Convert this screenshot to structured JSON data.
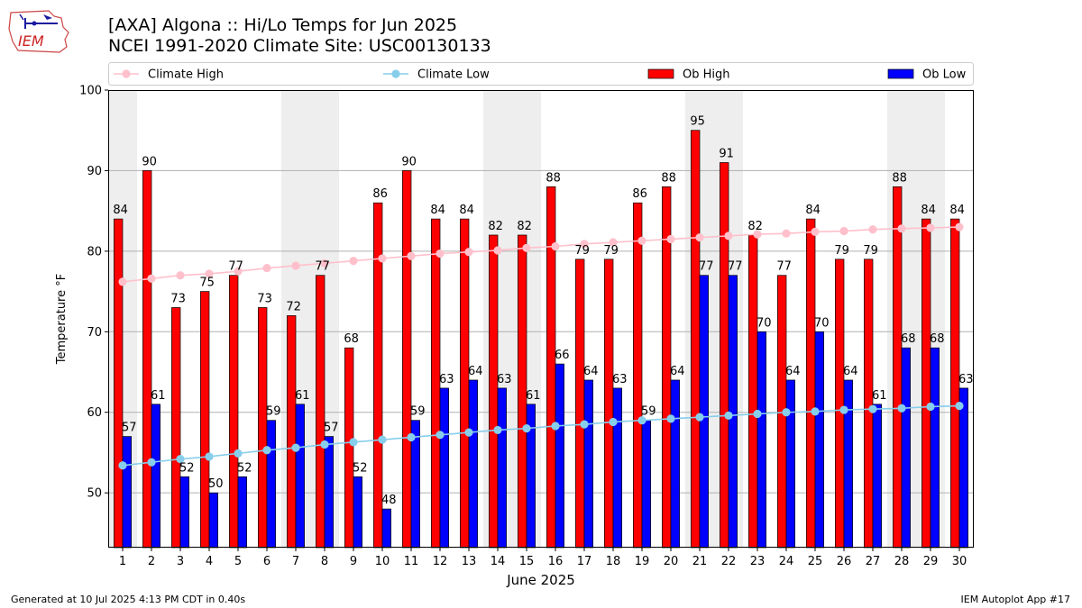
{
  "header": {
    "title_line1": "[AXA] Algona :: Hi/Lo Temps for Jun 2025",
    "title_line2": "NCEI 1991-2020 Climate Site: USC00130133"
  },
  "logo": {
    "text": "IEM"
  },
  "footer": {
    "left": "Generated at 10 Jul 2025 4:13 PM CDT in 0.40s",
    "right": "IEM Autoplot App #17"
  },
  "colors": {
    "ob_high": "#ff0000",
    "ob_low": "#0000ff",
    "climate_high": "#ffc0cb",
    "climate_low": "#87ceeb",
    "weekend_shade": "#eeeeee",
    "grid": "#b0b0b0"
  },
  "chart_data": {
    "type": "bar",
    "xlabel": "June 2025",
    "ylabel": "Temperature °F",
    "ylim": [
      43.2,
      100
    ],
    "yticks": [
      50,
      60,
      70,
      80,
      90,
      100
    ],
    "grid": "horizontal",
    "legend_position": "top",
    "categories": [
      "1",
      "2",
      "3",
      "4",
      "5",
      "6",
      "7",
      "8",
      "9",
      "10",
      "11",
      "12",
      "13",
      "14",
      "15",
      "16",
      "17",
      "18",
      "19",
      "20",
      "21",
      "22",
      "23",
      "24",
      "25",
      "26",
      "27",
      "28",
      "29",
      "30"
    ],
    "shaded_days": [
      1,
      7,
      8,
      14,
      15,
      21,
      22,
      28,
      29
    ],
    "series": [
      {
        "name": "Ob High",
        "kind": "bar",
        "values": [
          84,
          90,
          73,
          75,
          77,
          73,
          72,
          77,
          68,
          86,
          90,
          84,
          84,
          82,
          82,
          88,
          79,
          79,
          86,
          88,
          95,
          91,
          82,
          77,
          84,
          79,
          79,
          88,
          84,
          84
        ]
      },
      {
        "name": "Ob Low",
        "kind": "bar",
        "values": [
          57,
          61,
          52,
          50,
          52,
          59,
          61,
          57,
          52,
          48,
          59,
          63,
          64,
          63,
          61,
          66,
          64,
          63,
          59,
          64,
          77,
          77,
          70,
          64,
          70,
          64,
          61,
          68,
          68,
          63
        ]
      },
      {
        "name": "Climate High",
        "kind": "line",
        "values": [
          76.2,
          76.6,
          77.0,
          77.2,
          77.5,
          77.9,
          78.2,
          78.5,
          78.8,
          79.1,
          79.4,
          79.7,
          79.9,
          80.1,
          80.4,
          80.6,
          80.9,
          81.1,
          81.3,
          81.5,
          81.7,
          81.9,
          82.1,
          82.2,
          82.4,
          82.5,
          82.7,
          82.8,
          82.9,
          83.0
        ]
      },
      {
        "name": "Climate Low",
        "kind": "line",
        "values": [
          53.4,
          53.8,
          54.2,
          54.5,
          54.9,
          55.3,
          55.6,
          56.0,
          56.3,
          56.6,
          56.9,
          57.2,
          57.5,
          57.8,
          58.0,
          58.3,
          58.5,
          58.8,
          59.0,
          59.2,
          59.4,
          59.6,
          59.8,
          60.0,
          60.1,
          60.3,
          60.4,
          60.5,
          60.7,
          60.8
        ]
      }
    ]
  }
}
